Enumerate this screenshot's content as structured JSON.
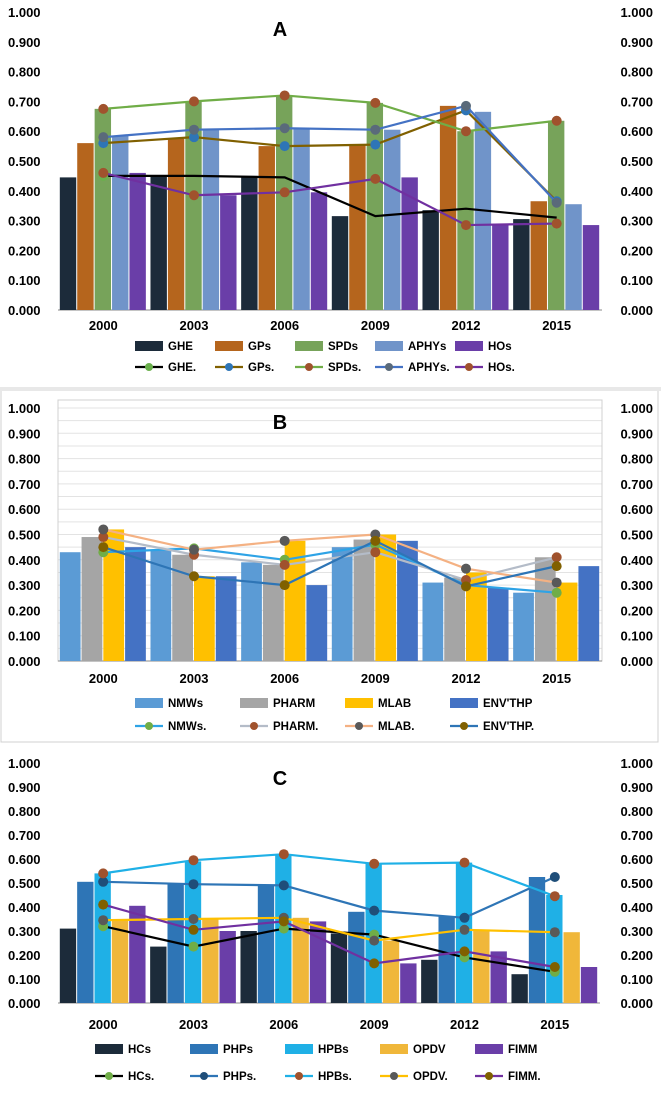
{
  "chart_data": [
    {
      "type": "bar",
      "title": "A",
      "categories": [
        "2000",
        "2003",
        "2006",
        "2009",
        "2012",
        "2015"
      ],
      "ylim": [
        0,
        1.0
      ],
      "yticks": [
        "0.000",
        "0.100",
        "0.200",
        "0.300",
        "0.400",
        "0.500",
        "0.600",
        "0.700",
        "0.800",
        "0.900",
        "1.000"
      ],
      "series": [
        {
          "name": "GHE",
          "color": "#1c2b3a",
          "values": [
            0.445,
            0.45,
            0.45,
            0.315,
            0.335,
            0.305
          ]
        },
        {
          "name": "GPs",
          "color": "#b5651d",
          "values": [
            0.56,
            0.575,
            0.55,
            0.555,
            0.685,
            0.365
          ]
        },
        {
          "name": "SPDs",
          "color": "#77a35a",
          "values": [
            0.675,
            0.7,
            0.72,
            0.695,
            0.6,
            0.635
          ]
        },
        {
          "name": "APHYs",
          "color": "#7094c9",
          "values": [
            0.585,
            0.605,
            0.61,
            0.605,
            0.665,
            0.355
          ]
        },
        {
          "name": "HOs",
          "color": "#6a3ea8",
          "values": [
            0.46,
            0.385,
            0.395,
            0.445,
            0.285,
            0.285
          ]
        }
      ],
      "lines": [
        {
          "name": "GHE.",
          "color": "#000000",
          "marker": "#6ab04c",
          "values": [
            0.45,
            0.45,
            0.445,
            0.315,
            0.34,
            0.31
          ],
          "show_markers": [
            true,
            false,
            false,
            false,
            false,
            false
          ]
        },
        {
          "name": "GPs.",
          "color": "#806000",
          "marker": "#2e75b6",
          "values": [
            0.56,
            0.58,
            0.55,
            0.555,
            0.67,
            0.365
          ]
        },
        {
          "name": "SPDs.",
          "color": "#70ad47",
          "marker": "#a0522d",
          "values": [
            0.675,
            0.7,
            0.72,
            0.695,
            0.6,
            0.635
          ]
        },
        {
          "name": "APHYs.",
          "color": "#4472c4",
          "marker": "#5a6a7a",
          "values": [
            0.58,
            0.605,
            0.61,
            0.605,
            0.685,
            0.36
          ]
        },
        {
          "name": "HOs.",
          "color": "#7030a0",
          "marker": "#a0522d",
          "values": [
            0.46,
            0.385,
            0.395,
            0.44,
            0.285,
            0.29
          ]
        }
      ]
    },
    {
      "type": "bar",
      "title": "B",
      "categories": [
        "2000",
        "2003",
        "2006",
        "2009",
        "2012",
        "2015"
      ],
      "ylim": [
        0,
        1.0
      ],
      "yticks": [
        "0.000",
        "0.100",
        "0.200",
        "0.300",
        "0.400",
        "0.500",
        "0.600",
        "0.700",
        "0.800",
        "0.900",
        "1.000"
      ],
      "series": [
        {
          "name": "NMWs",
          "color": "#5b9bd5",
          "values": [
            0.43,
            0.44,
            0.39,
            0.45,
            0.31,
            0.27
          ]
        },
        {
          "name": "PHARM",
          "color": "#a5a5a5",
          "values": [
            0.49,
            0.42,
            0.38,
            0.48,
            0.33,
            0.41
          ]
        },
        {
          "name": "MLAB",
          "color": "#ffc000",
          "values": [
            0.52,
            0.335,
            0.475,
            0.5,
            0.35,
            0.31
          ]
        },
        {
          "name": "ENV'THP",
          "color": "#4472c4",
          "values": [
            0.45,
            0.335,
            0.3,
            0.475,
            0.29,
            0.375
          ]
        }
      ],
      "lines": [
        {
          "name": "NMWs.",
          "color": "#2ea3e6",
          "marker": "#70ad47",
          "values": [
            0.43,
            0.445,
            0.4,
            0.46,
            0.3,
            0.27
          ]
        },
        {
          "name": "PHARM.",
          "color": "#b4bcc8",
          "marker": "#a0522d",
          "values": [
            0.49,
            0.42,
            0.38,
            0.43,
            0.32,
            0.41
          ]
        },
        {
          "name": "MLAB.",
          "color": "#f4b183",
          "marker": "#595959",
          "values": [
            0.52,
            0.44,
            0.475,
            0.5,
            0.365,
            0.31
          ]
        },
        {
          "name": "ENV'THP.",
          "color": "#2e75b6",
          "marker": "#806000",
          "values": [
            0.45,
            0.335,
            0.3,
            0.475,
            0.295,
            0.375
          ]
        }
      ]
    },
    {
      "type": "bar",
      "title": "C",
      "categories": [
        "2000",
        "2003",
        "2006",
        "2009",
        "2012",
        "2015"
      ],
      "ylim": [
        0,
        1.0
      ],
      "yticks": [
        "0.000",
        "0.100",
        "0.200",
        "0.300",
        "0.400",
        "0.500",
        "0.600",
        "0.700",
        "0.800",
        "0.900",
        "1.000"
      ],
      "series": [
        {
          "name": "HCs",
          "color": "#1c2b3a",
          "values": [
            0.31,
            0.235,
            0.3,
            0.29,
            0.18,
            0.12
          ]
        },
        {
          "name": "PHPs",
          "color": "#2e75b6",
          "values": [
            0.505,
            0.5,
            0.49,
            0.38,
            0.36,
            0.525
          ]
        },
        {
          "name": "HPBs",
          "color": "#1fb0e6",
          "values": [
            0.54,
            0.59,
            0.615,
            0.58,
            0.585,
            0.45
          ]
        },
        {
          "name": "OPDV",
          "color": "#f0b73a",
          "values": [
            0.35,
            0.35,
            0.355,
            0.26,
            0.305,
            0.295
          ]
        },
        {
          "name": "FIMM",
          "color": "#6a3ea8",
          "values": [
            0.405,
            0.3,
            0.34,
            0.165,
            0.215,
            0.15
          ]
        }
      ],
      "lines": [
        {
          "name": "HCs.",
          "color": "#000000",
          "marker": "#70ad47",
          "values": [
            0.32,
            0.235,
            0.31,
            0.285,
            0.19,
            0.13
          ]
        },
        {
          "name": "PHPs.",
          "color": "#2e75b6",
          "marker": "#1f4e79",
          "values": [
            0.505,
            0.495,
            0.49,
            0.385,
            0.355,
            0.525
          ]
        },
        {
          "name": "HPBs.",
          "color": "#1fb0e6",
          "marker": "#a0522d",
          "values": [
            0.54,
            0.595,
            0.62,
            0.58,
            0.585,
            0.445
          ]
        },
        {
          "name": "OPDV.",
          "color": "#ffc000",
          "marker": "#595959",
          "values": [
            0.345,
            0.35,
            0.355,
            0.26,
            0.305,
            0.295
          ]
        },
        {
          "name": "FIMM.",
          "color": "#7030a0",
          "marker": "#806000",
          "values": [
            0.41,
            0.305,
            0.34,
            0.165,
            0.215,
            0.15
          ]
        }
      ]
    }
  ]
}
